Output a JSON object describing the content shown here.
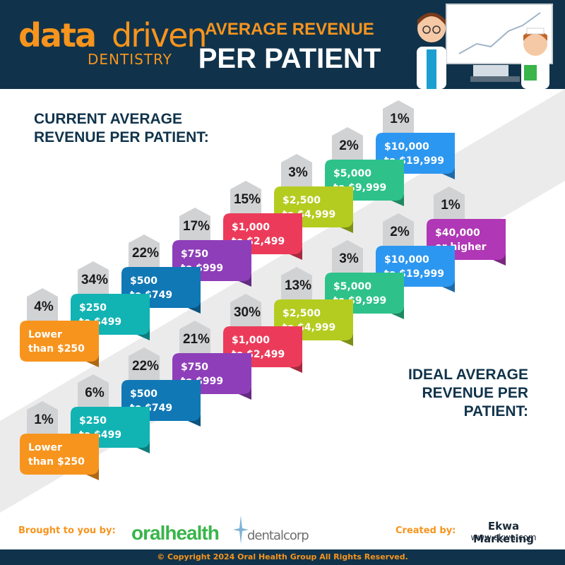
{
  "header": {
    "logo_bold": "data",
    "logo_light": "driven",
    "logo_sub": "DENTISTRY",
    "title_line1": "AVERAGE REVENUE",
    "title_line2": "PER PATIENT"
  },
  "colors": {
    "header_bg": "#10334b",
    "accent_orange": "#f7941d",
    "percent_tab": "#d1d2d4",
    "band_gray": "#ebebec",
    "tier_colors": [
      "#f7941d",
      "#12b3b3",
      "#1078b5",
      "#8e3eb9",
      "#ec3b5a",
      "#b4cc20",
      "#2ec28a",
      "#2c97f0",
      "#b037b5"
    ]
  },
  "chart_data": [
    {
      "type": "bar",
      "title": "CURRENT AVERAGE REVENUE PER PATIENT:",
      "title_lines": [
        "CURRENT AVERAGE",
        "REVENUE PER PATIENT:"
      ],
      "categories": [
        "Lower than $250",
        "$250 to $499",
        "$500 to $749",
        "$750 to $999",
        "$1,000 to $2,499",
        "$2,500 to $4,999",
        "$5,000 to $9,999",
        "$10,000 to $19,999"
      ],
      "category_lines": [
        [
          "Lower",
          "than $250"
        ],
        [
          "$250",
          "to $499"
        ],
        [
          "$500",
          "to $749"
        ],
        [
          "$750",
          "to $999"
        ],
        [
          "$1,000",
          "to $2,499"
        ],
        [
          "$2,500",
          "to $4,999"
        ],
        [
          "$5,000",
          "to $9,999"
        ],
        [
          "$10,000",
          "to $19,999"
        ]
      ],
      "values": [
        4,
        34,
        22,
        17,
        15,
        3,
        2,
        1
      ],
      "labels": [
        "4%",
        "34%",
        "22%",
        "17%",
        "15%",
        "3%",
        "2%",
        "1%"
      ],
      "unit": "%"
    },
    {
      "type": "bar",
      "title": "IDEAL AVERAGE REVENUE PER PATIENT:",
      "title_lines": [
        "IDEAL AVERAGE",
        "REVENUE PER PATIENT:"
      ],
      "categories": [
        "Lower than $250",
        "$250 to $499",
        "$500 to $749",
        "$750 to $999",
        "$1,000 to $2,499",
        "$2,500 to $4,999",
        "$5,000 to $9,999",
        "$10,000 to $19,999",
        "$40,000 or higher"
      ],
      "category_lines": [
        [
          "Lower",
          "than $250"
        ],
        [
          "$250",
          "to $499"
        ],
        [
          "$500",
          "to $749"
        ],
        [
          "$750",
          "to $999"
        ],
        [
          "$1,000",
          "to $2,499"
        ],
        [
          "$2,500",
          "to $4,999"
        ],
        [
          "$5,000",
          "to $9,999"
        ],
        [
          "$10,000",
          "to $19,999"
        ],
        [
          "$40,000",
          "or higher"
        ]
      ],
      "values": [
        1,
        6,
        22,
        21,
        30,
        13,
        3,
        2,
        1
      ],
      "labels": [
        "1%",
        "6%",
        "22%",
        "21%",
        "30%",
        "13%",
        "3%",
        "2%",
        "1%"
      ],
      "unit": "%"
    }
  ],
  "footer": {
    "brought_by": "Brought to you by:",
    "partner1": "oralhealth",
    "partner2": "dentalcorp",
    "created_by": "Created by:",
    "creator": "Ekwa Marketing",
    "creator_url": "www.ekwa.com",
    "copyright": "© Copyright 2024 Oral Health Group All Rights Reserved."
  }
}
